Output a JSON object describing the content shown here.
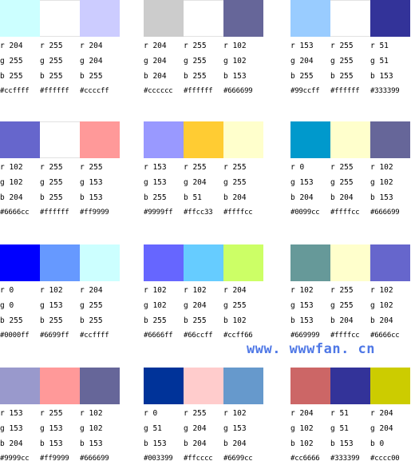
{
  "palettes": [
    {
      "colors": [
        {
          "r": "r 204",
          "g": "g 255",
          "b": "b 255",
          "hex": "#ccffff",
          "swatch": "#ccffff"
        },
        {
          "r": "r 255",
          "g": "g 255",
          "b": "b 255",
          "hex": "#ffffff",
          "swatch": "#ffffff"
        },
        {
          "r": "r 204",
          "g": "g 204",
          "b": "b 255",
          "hex": "#ccccff",
          "swatch": "#ccccff"
        }
      ]
    },
    {
      "colors": [
        {
          "r": "r 204",
          "g": "g 204",
          "b": "b 204",
          "hex": "#cccccc",
          "swatch": "#cccccc"
        },
        {
          "r": "r 255",
          "g": "g 255",
          "b": "b 255",
          "hex": "#ffffff",
          "swatch": "#ffffff"
        },
        {
          "r": "r 102",
          "g": "g 102",
          "b": "b 153",
          "hex": "#666699",
          "swatch": "#666699"
        }
      ]
    },
    {
      "colors": [
        {
          "r": "r 153",
          "g": "g 204",
          "b": "b 255",
          "hex": "#99ccff",
          "swatch": "#99ccff"
        },
        {
          "r": "r 255",
          "g": "g 255",
          "b": "b 255",
          "hex": "#ffffff",
          "swatch": "#ffffff"
        },
        {
          "r": "r 51",
          "g": "g 51",
          "b": "b 153",
          "hex": "#333399",
          "swatch": "#333399"
        }
      ]
    },
    {
      "colors": [
        {
          "r": "r 102",
          "g": "g 102",
          "b": "b 204",
          "hex": "#6666cc",
          "swatch": "#6666cc"
        },
        {
          "r": "r 255",
          "g": "g 255",
          "b": "b 255",
          "hex": "#ffffff",
          "swatch": "#ffffff"
        },
        {
          "r": "r 255",
          "g": "g 153",
          "b": "b 153",
          "hex": "#ff9999",
          "swatch": "#ff9999"
        }
      ]
    },
    {
      "colors": [
        {
          "r": "r 153",
          "g": "g 153",
          "b": "b 255",
          "hex": "#9999ff",
          "swatch": "#9999ff"
        },
        {
          "r": "r 255",
          "g": "g 204",
          "b": "b 51",
          "hex": "#ffcc33",
          "swatch": "#ffcc33"
        },
        {
          "r": "r 255",
          "g": "g 255",
          "b": "b 204",
          "hex": "#ffffcc",
          "swatch": "#ffffcc"
        }
      ]
    },
    {
      "colors": [
        {
          "r": "r 0",
          "g": "g 153",
          "b": "b 204",
          "hex": "#0099cc",
          "swatch": "#0099cc"
        },
        {
          "r": "r 255",
          "g": "g 255",
          "b": "b 204",
          "hex": "#ffffcc",
          "swatch": "#ffffcc"
        },
        {
          "r": "r 102",
          "g": "g 102",
          "b": "b 153",
          "hex": "#666699",
          "swatch": "#666699"
        }
      ]
    },
    {
      "colors": [
        {
          "r": "r 0",
          "g": "g 0",
          "b": "b 255",
          "hex": "#0000ff",
          "swatch": "#0000ff"
        },
        {
          "r": "r 102",
          "g": "g 153",
          "b": "b 255",
          "hex": "#6699ff",
          "swatch": "#6699ff"
        },
        {
          "r": "r 204",
          "g": "g 255",
          "b": "b 255",
          "hex": "#ccffff",
          "swatch": "#ccffff"
        }
      ]
    },
    {
      "colors": [
        {
          "r": "r 102",
          "g": "g 102",
          "b": "b 255",
          "hex": "#6666ff",
          "swatch": "#6666ff"
        },
        {
          "r": "r 102",
          "g": "g 204",
          "b": "b 255",
          "hex": "#66ccff",
          "swatch": "#66ccff"
        },
        {
          "r": "r 204",
          "g": "g 255",
          "b": "b 102",
          "hex": "#ccff66",
          "swatch": "#ccff66"
        }
      ]
    },
    {
      "colors": [
        {
          "r": "r 102",
          "g": "g 153",
          "b": "b 153",
          "hex": "#669999",
          "swatch": "#669999"
        },
        {
          "r": "r 255",
          "g": "g 255",
          "b": "b 204",
          "hex": "#ffffcc",
          "swatch": "#ffffcc"
        },
        {
          "r": "r 102",
          "g": "g 102",
          "b": "b 204",
          "hex": "#6666cc",
          "swatch": "#6666cc"
        }
      ]
    },
    {
      "colors": [
        {
          "r": "r 153",
          "g": "g 153",
          "b": "b 204",
          "hex": "#9999cc",
          "swatch": "#9999cc"
        },
        {
          "r": "r 255",
          "g": "g 153",
          "b": "b 153",
          "hex": "#ff9999",
          "swatch": "#ff9999"
        },
        {
          "r": "r 102",
          "g": "g 102",
          "b": "b 153",
          "hex": "#666699",
          "swatch": "#666699"
        }
      ]
    },
    {
      "colors": [
        {
          "r": "r 0",
          "g": "g 51",
          "b": "b 153",
          "hex": "#003399",
          "swatch": "#003399"
        },
        {
          "r": "r 255",
          "g": "g 204",
          "b": "b 204",
          "hex": "#ffcccc",
          "swatch": "#ffcccc"
        },
        {
          "r": "r 102",
          "g": "g 153",
          "b": "b 204",
          "hex": "#6699cc",
          "swatch": "#6699cc"
        }
      ]
    },
    {
      "colors": [
        {
          "r": "r 204",
          "g": "g 102",
          "b": "b 102",
          "hex": "#cc6666",
          "swatch": "#cc6666"
        },
        {
          "r": "r 51",
          "g": "g 51",
          "b": "b 153",
          "hex": "#333399",
          "swatch": "#333399"
        },
        {
          "r": "r 204",
          "g": "g 204",
          "b": "b 0",
          "hex": "#cccc00",
          "swatch": "#cccc00"
        }
      ]
    }
  ],
  "watermark": {
    "text": "www. wwwfan. cn",
    "color": "#4f78e6"
  }
}
